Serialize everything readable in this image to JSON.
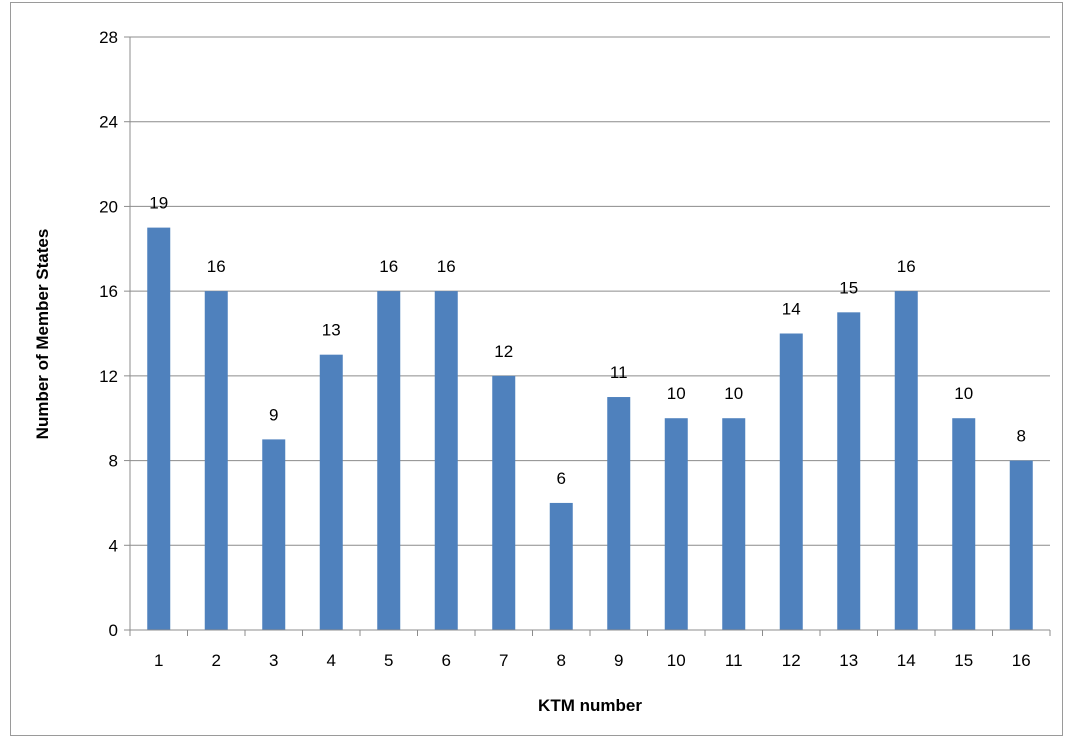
{
  "chart_data": {
    "type": "bar",
    "categories": [
      "1",
      "2",
      "3",
      "4",
      "5",
      "6",
      "7",
      "8",
      "9",
      "10",
      "11",
      "12",
      "13",
      "14",
      "15",
      "16"
    ],
    "values": [
      19,
      16,
      9,
      13,
      16,
      16,
      12,
      6,
      11,
      10,
      10,
      14,
      15,
      16,
      10,
      8
    ],
    "data_labels": [
      "19",
      "16",
      "9",
      "13",
      "16",
      "16",
      "12",
      "6",
      "11",
      "10",
      "10",
      "14",
      "15",
      "16",
      "10",
      "8"
    ],
    "title": "",
    "xlabel": "KTM number",
    "ylabel": "Number of Member States",
    "ylim": [
      0,
      28
    ],
    "yticks": [
      0,
      4,
      8,
      12,
      16,
      20,
      24,
      28
    ],
    "ytick_labels": [
      "0",
      "4",
      "8",
      "12",
      "16",
      "20",
      "24",
      "28"
    ],
    "grid": true,
    "legend": "none",
    "bar_color": "#4F81BD"
  }
}
